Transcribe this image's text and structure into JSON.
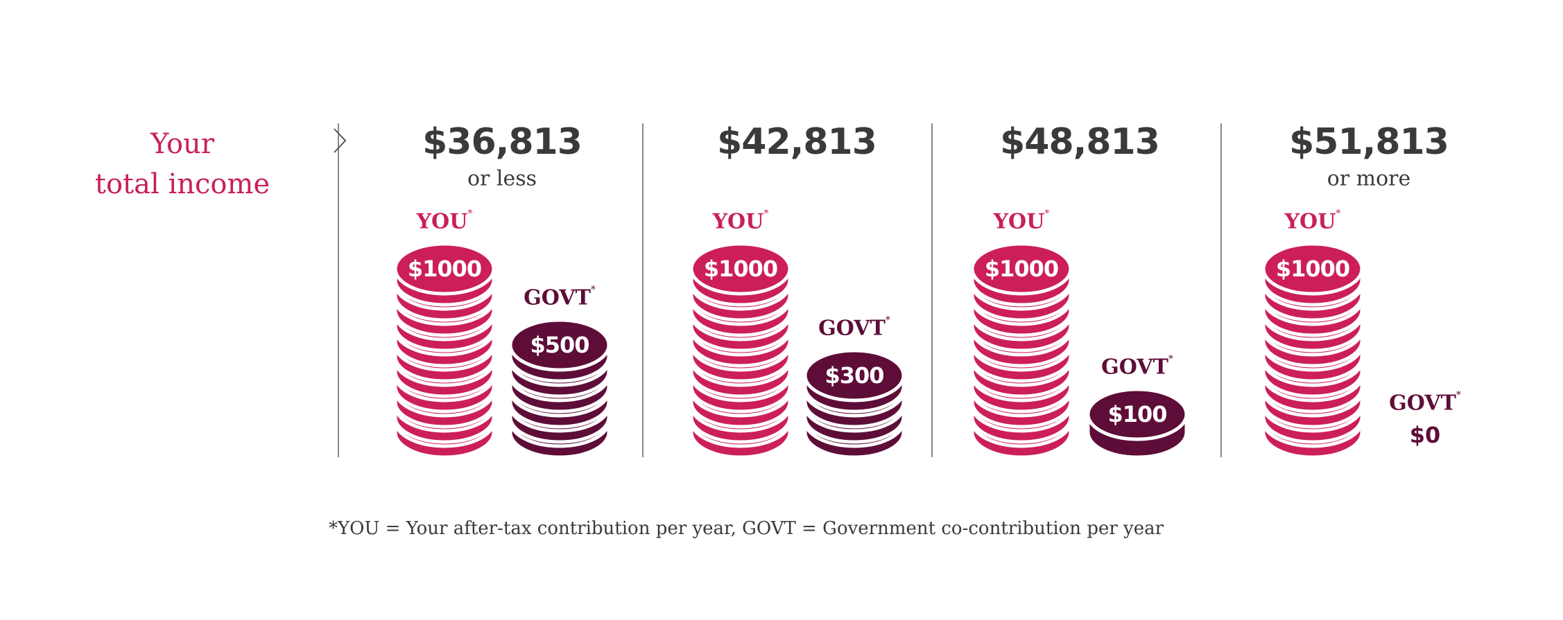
{
  "lead_label": {
    "line1": "Your",
    "line2": "total income"
  },
  "colors": {
    "you": "#cc1f5a",
    "govt": "#5e0d38",
    "text": "#3a3a3a"
  },
  "icons": {
    "arrow": "chevron-right-icon",
    "coin": "coin-stack-icon"
  },
  "you_label": "YOU",
  "govt_label": "GOVT",
  "asterisk": "*",
  "columns": [
    {
      "income": "$36,813",
      "qualifier": "or less",
      "you": "$1000",
      "govt": "$500"
    },
    {
      "income": "$42,813",
      "qualifier": "",
      "you": "$1000",
      "govt": "$300"
    },
    {
      "income": "$48,813",
      "qualifier": "",
      "you": "$1000",
      "govt": "$100"
    },
    {
      "income": "$51,813",
      "qualifier": "or more",
      "you": "$1000",
      "govt": "$0"
    }
  ],
  "footnote": "*YOU = Your after-tax contribution per year, GOVT = Government co-contribution per year",
  "chart_data": {
    "type": "bar",
    "style": "pictograph coin stacks",
    "categories": [
      "$36,813 or less",
      "$42,813",
      "$48,813",
      "$51,813 or more"
    ],
    "series": [
      {
        "name": "YOU",
        "values": [
          1000,
          1000,
          1000,
          1000
        ]
      },
      {
        "name": "GOVT",
        "values": [
          500,
          300,
          100,
          0
        ]
      }
    ],
    "title": "",
    "xlabel": "Your total income",
    "ylabel": "",
    "grid": false
  }
}
